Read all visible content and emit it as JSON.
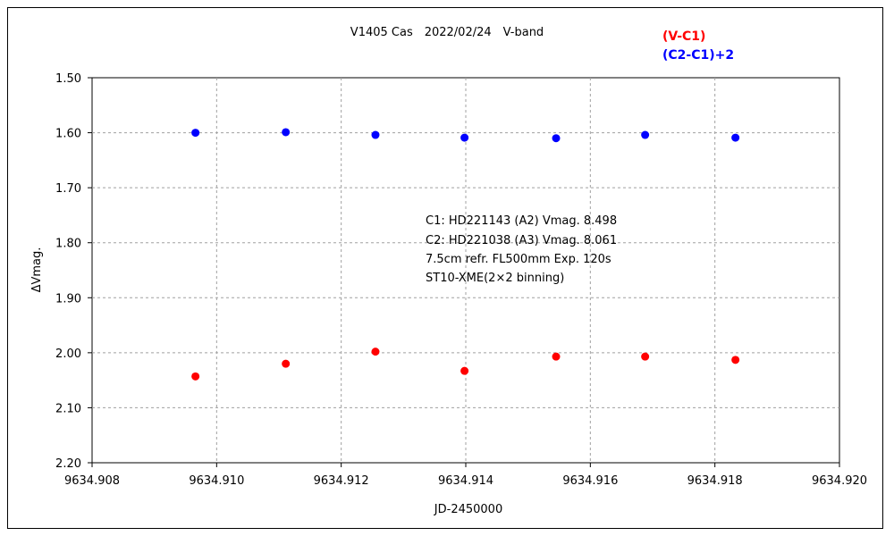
{
  "chart_data": {
    "type": "scatter",
    "title": "V1405 Cas　2022/02/24　V-band",
    "xlabel": "JD-2450000",
    "ylabel": "ΔVmag.",
    "xlim": [
      9634.908,
      9634.92
    ],
    "ylim": [
      2.2,
      1.5
    ],
    "y_inverted": true,
    "x_ticks": [
      "9634.908",
      "9634.910",
      "9634.912",
      "9634.914",
      "9634.916",
      "9634.918",
      "9634.920"
    ],
    "y_ticks": [
      "1.50",
      "1.60",
      "1.70",
      "1.80",
      "1.90",
      "2.00",
      "2.10",
      "2.20"
    ],
    "grid": true,
    "legend_position": "top-right",
    "series": [
      {
        "name": "(V-C1)",
        "color": "#ff0000",
        "points": [
          {
            "x": 9634.90966,
            "y": 2.043
          },
          {
            "x": 9634.91111,
            "y": 2.02
          },
          {
            "x": 9634.91255,
            "y": 1.998
          },
          {
            "x": 9634.91398,
            "y": 2.033
          },
          {
            "x": 9634.91545,
            "y": 2.007
          },
          {
            "x": 9634.91688,
            "y": 2.007
          },
          {
            "x": 9634.91833,
            "y": 2.013
          }
        ]
      },
      {
        "name": "(C2-C1)+2",
        "color": "#0000ff",
        "points": [
          {
            "x": 9634.90966,
            "y": 1.6
          },
          {
            "x": 9634.91111,
            "y": 1.599
          },
          {
            "x": 9634.91255,
            "y": 1.604
          },
          {
            "x": 9634.91398,
            "y": 1.609
          },
          {
            "x": 9634.91545,
            "y": 1.61
          },
          {
            "x": 9634.91688,
            "y": 1.604
          },
          {
            "x": 9634.91833,
            "y": 1.609
          }
        ]
      }
    ],
    "annotations": [
      "C1: HD221143 (A2) Vmag. 8.498",
      "C2: HD221038 (A3) Vmag. 8.061",
      "7.5cm refr. FL500mm Exp. 120s",
      "ST10-XME(2×2 binning)"
    ]
  }
}
